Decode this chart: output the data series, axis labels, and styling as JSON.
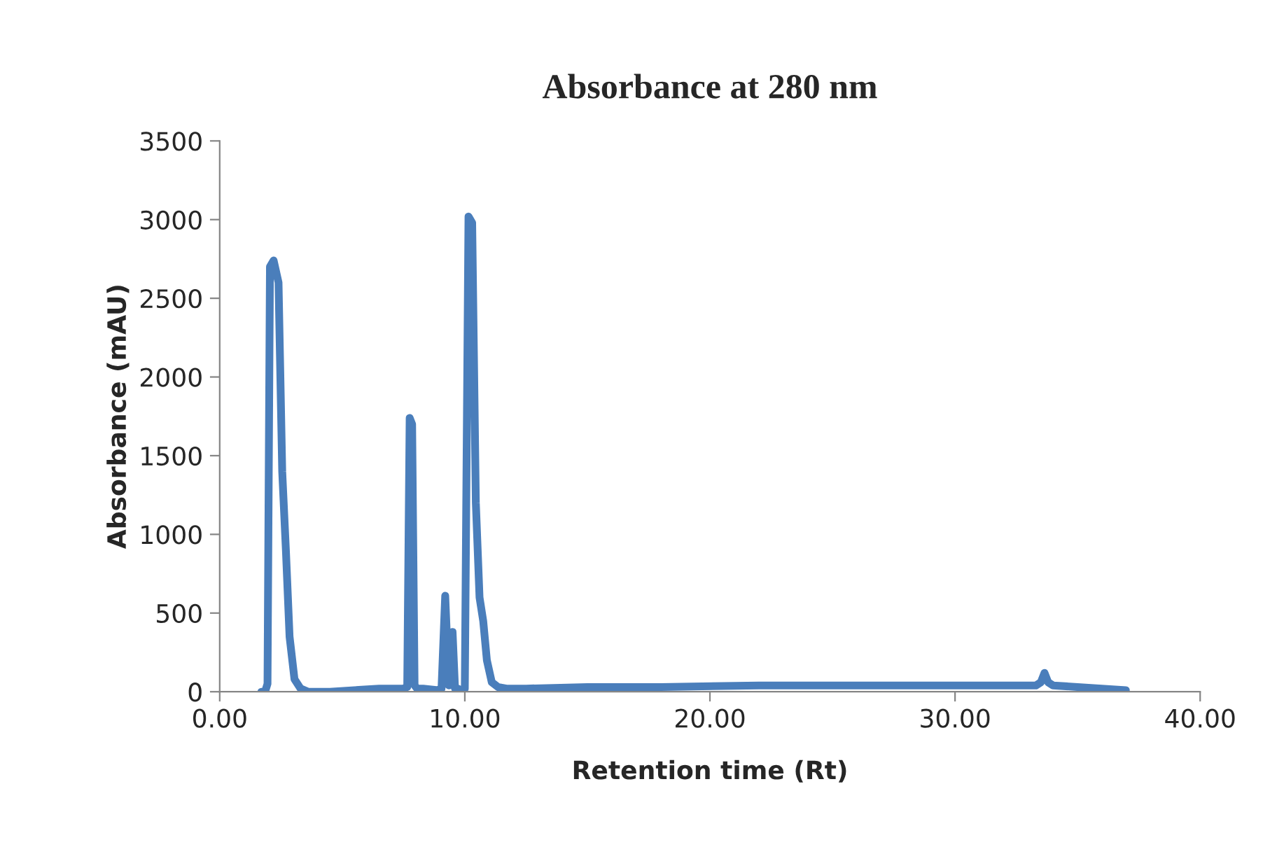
{
  "chart_data": {
    "type": "line",
    "title": "Absorbance at 280 nm",
    "xlabel": "Retention time (Rt)",
    "ylabel": "Absorbance (mAU)",
    "series": [
      {
        "color": "#4a7ebb",
        "x": [
          1.7,
          1.85,
          1.95,
          2.05,
          2.2,
          2.4,
          2.55,
          2.7,
          2.85,
          3.05,
          3.3,
          3.6,
          4.5,
          5.5,
          6.5,
          7.5,
          7.65,
          7.75,
          7.85,
          7.95,
          8.05,
          8.3,
          8.9,
          9.05,
          9.2,
          9.35,
          9.5,
          9.6,
          9.7,
          9.85,
          10.0,
          10.15,
          10.3,
          10.45,
          10.6,
          10.75,
          10.9,
          11.1,
          11.35,
          11.7,
          12.5,
          15,
          18,
          22,
          26,
          30,
          33.3,
          33.5,
          33.65,
          33.8,
          34,
          35,
          36.97
        ],
        "values": [
          0,
          0,
          50,
          2700,
          2740,
          2600,
          1400,
          900,
          350,
          80,
          20,
          0,
          0,
          10,
          20,
          20,
          30,
          1740,
          1700,
          40,
          20,
          20,
          10,
          20,
          610,
          40,
          380,
          20,
          20,
          10,
          20,
          3020,
          2980,
          1200,
          600,
          450,
          200,
          60,
          30,
          20,
          20,
          30,
          30,
          40,
          40,
          40,
          40,
          60,
          120,
          60,
          40,
          30,
          10
        ]
      }
    ],
    "xlim": [
      0,
      40
    ],
    "xticks": [
      {
        "value": 0,
        "label": "0.00"
      },
      {
        "value": 10,
        "label": "10.00"
      },
      {
        "value": 20,
        "label": "20.00"
      },
      {
        "value": 30,
        "label": "30.00"
      },
      {
        "value": 40,
        "label": "40.00"
      }
    ],
    "ylim": [
      0,
      3500
    ],
    "yticks": [
      0,
      500,
      1000,
      1500,
      2000,
      2500,
      3000,
      3500
    ],
    "grid": false,
    "line_style": "solid",
    "marker": "none"
  }
}
